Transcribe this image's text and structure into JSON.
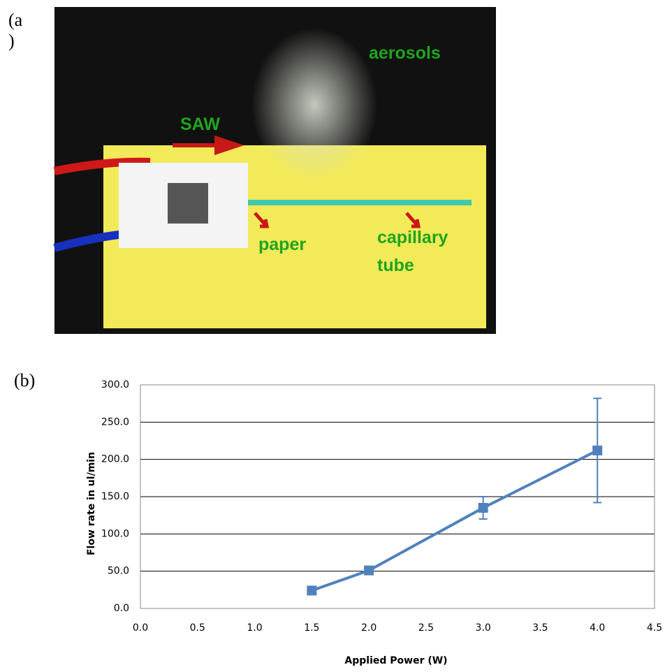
{
  "panel_a": {
    "label": "(a\n)",
    "aerosols": "aerosols",
    "saw": "SAW",
    "paper": "paper",
    "capillary": "capillary tube"
  },
  "chart_data": {
    "type": "line",
    "panel_label": "(b)",
    "x_label": "Applied Power (W)",
    "y_label": "Flow rate in ul/min",
    "x": [
      1.5,
      2.0,
      3.0,
      4.0
    ],
    "values": [
      24,
      51,
      135,
      212
    ],
    "errors": [
      2,
      2,
      15,
      70
    ],
    "color": "#4f81bd",
    "grid": true,
    "xlim": [
      0,
      4.5
    ],
    "xticks": [
      {
        "value": 0,
        "label": "0.0"
      },
      {
        "value": 0.5,
        "label": "0.5"
      },
      {
        "value": 1,
        "label": "1.0"
      },
      {
        "value": 1.5,
        "label": "1.5"
      },
      {
        "value": 2,
        "label": "2.0"
      },
      {
        "value": 2.5,
        "label": "2.5"
      },
      {
        "value": 3,
        "label": "3.0"
      },
      {
        "value": 3.5,
        "label": "3.5"
      },
      {
        "value": 4,
        "label": "4.0"
      },
      {
        "value": 4.5,
        "label": "4.5"
      }
    ],
    "ylim": [
      0,
      300
    ],
    "yticks": [
      {
        "value": 0,
        "label": "0.0"
      },
      {
        "value": 50,
        "label": "50.0"
      },
      {
        "value": 100,
        "label": "100.0"
      },
      {
        "value": 150,
        "label": "150.0"
      },
      {
        "value": 200,
        "label": "200.0"
      },
      {
        "value": 250,
        "label": "250.0"
      },
      {
        "value": 300,
        "label": "300.0"
      }
    ]
  }
}
